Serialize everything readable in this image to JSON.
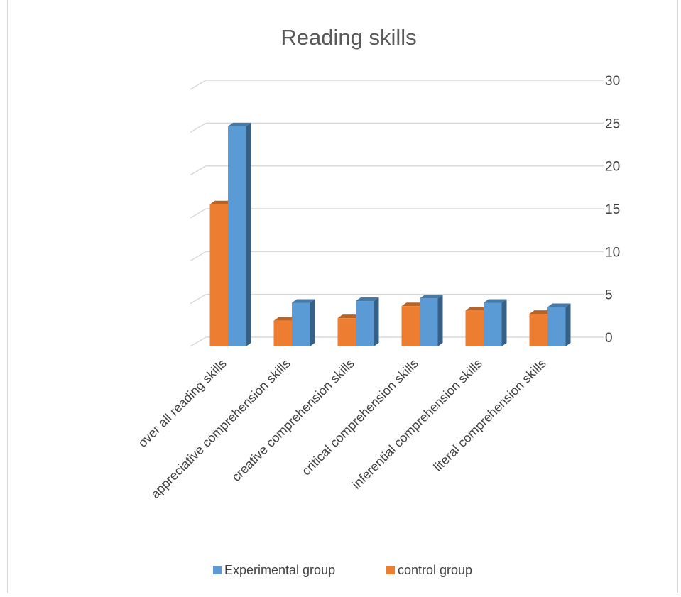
{
  "chart_data": {
    "type": "bar",
    "title": "Reading skills",
    "categories": [
      "over all reading skills",
      "appreciative comprehension skills",
      "creative comprehension skills",
      "critical comprehension skills",
      "inferential comprehension skills",
      "literal comprehension skills"
    ],
    "series": [
      {
        "name": "control group",
        "color": "#ED7D31",
        "values": [
          16.6,
          3.0,
          3.3,
          4.7,
          4.2,
          3.8
        ]
      },
      {
        "name": "Experimental group",
        "color": "#5B9BD5",
        "values": [
          25.7,
          5.1,
          5.3,
          5.6,
          5.1,
          4.6
        ]
      }
    ],
    "ylim": [
      0,
      30
    ],
    "yticks": [
      0,
      5,
      10,
      15,
      20,
      25,
      30
    ],
    "axis_position": "right",
    "grid": true,
    "legend": {
      "position": "bottom",
      "order": [
        "Experimental group",
        "control group"
      ]
    },
    "style": "3d-clustered-column"
  }
}
